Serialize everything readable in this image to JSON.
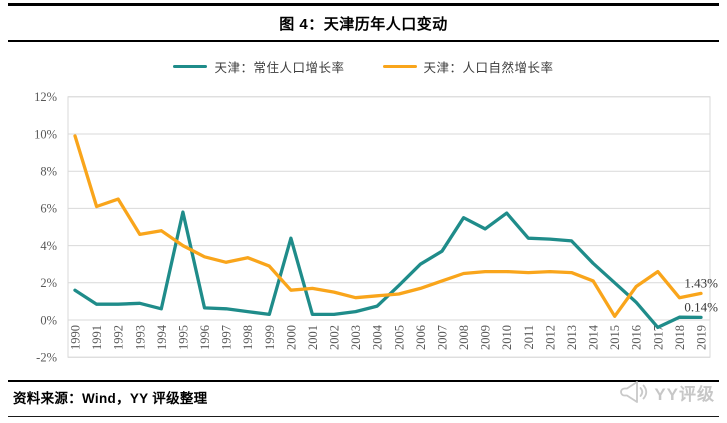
{
  "header": {
    "title": "图 4：天津历年人口变动"
  },
  "chart_data": {
    "type": "line",
    "title": "图 4：天津历年人口变动",
    "x": [
      "1990",
      "1991",
      "1992",
      "1993",
      "1994",
      "1995",
      "1996",
      "1997",
      "1998",
      "1999",
      "2000",
      "2001",
      "2002",
      "2003",
      "2004",
      "2005",
      "2006",
      "2007",
      "2008",
      "2009",
      "2010",
      "2011",
      "2012",
      "2013",
      "2014",
      "2015",
      "2016",
      "2017",
      "2018",
      "2019"
    ],
    "series": [
      {
        "name": "天津：常住人口增长率",
        "color": "#1F8C8A",
        "values": [
          1.6,
          0.85,
          0.85,
          0.9,
          0.6,
          5.8,
          0.65,
          0.6,
          0.45,
          0.3,
          4.4,
          0.3,
          0.3,
          0.45,
          0.75,
          1.85,
          3.0,
          3.7,
          5.5,
          4.9,
          5.75,
          4.4,
          4.35,
          4.25,
          3.05,
          2.0,
          0.95,
          -0.4,
          0.15,
          0.14
        ]
      },
      {
        "name": "天津：人口自然增长率",
        "color": "#F9A51B",
        "values": [
          9.9,
          6.1,
          6.5,
          4.6,
          4.8,
          4.0,
          3.4,
          3.1,
          3.35,
          2.9,
          1.6,
          1.7,
          1.5,
          1.2,
          1.3,
          1.4,
          1.7,
          2.1,
          2.5,
          2.6,
          2.6,
          2.55,
          2.6,
          2.55,
          2.1,
          0.2,
          1.8,
          2.6,
          1.2,
          1.43
        ]
      }
    ],
    "xlabel": "",
    "ylabel": "",
    "ylim": [
      -2,
      12
    ],
    "ytick_values": [
      12,
      10,
      8,
      6,
      4,
      2,
      0,
      -2
    ],
    "ytick_labels": [
      "12%",
      "10%",
      "8%",
      "6%",
      "4%",
      "2%",
      "0%",
      "-2%"
    ],
    "grid": true,
    "legend_position": "top-center",
    "end_labels": [
      {
        "series_index": 1,
        "text": "1.43%"
      },
      {
        "series_index": 0,
        "text": "0.14%"
      }
    ]
  },
  "legend": {
    "items": [
      {
        "label": "天津：常住人口增长率",
        "color": "#1F8C8A"
      },
      {
        "label": "天津：人口自然增长率",
        "color": "#F9A51B"
      }
    ]
  },
  "footer": {
    "source": "资料来源：Wind，YY 评级整理",
    "logo_text": "YY评级"
  },
  "colors": {
    "teal": "#1F8C8A",
    "orange": "#F9A51B",
    "gridline": "#D9D9D9",
    "tick_text": "#595959",
    "end_label_text": "#383838",
    "rule": "#000000",
    "logo_gray": "#C7C7C7"
  }
}
